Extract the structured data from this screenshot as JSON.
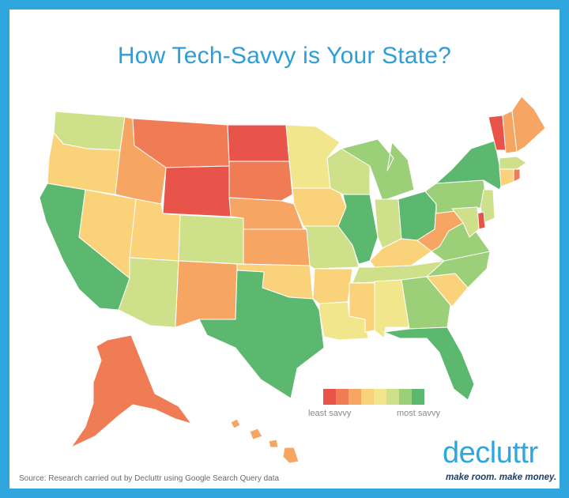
{
  "title": "How Tech-Savvy is Your State?",
  "legend": {
    "least_label": "least savvy",
    "most_label": "most savvy",
    "colors": [
      "#e8534a",
      "#f07c55",
      "#f6a562",
      "#fad27a",
      "#f2e68c",
      "#cfe08a",
      "#9bcf78",
      "#5cb86e"
    ]
  },
  "states": [
    {
      "code": "WA",
      "level": 6
    },
    {
      "code": "OR",
      "level": 4
    },
    {
      "code": "CA",
      "level": 8
    },
    {
      "code": "NV",
      "level": 4
    },
    {
      "code": "ID",
      "level": 3
    },
    {
      "code": "MT",
      "level": 2
    },
    {
      "code": "WY",
      "level": 1
    },
    {
      "code": "UT",
      "level": 4
    },
    {
      "code": "AZ",
      "level": 6
    },
    {
      "code": "CO",
      "level": 6
    },
    {
      "code": "NM",
      "level": 3
    },
    {
      "code": "ND",
      "level": 1
    },
    {
      "code": "SD",
      "level": 2
    },
    {
      "code": "NE",
      "level": 3
    },
    {
      "code": "KS",
      "level": 3
    },
    {
      "code": "OK",
      "level": 4
    },
    {
      "code": "TX",
      "level": 8
    },
    {
      "code": "MN",
      "level": 5
    },
    {
      "code": "IA",
      "level": 4
    },
    {
      "code": "MO",
      "level": 6
    },
    {
      "code": "AR",
      "level": 4
    },
    {
      "code": "LA",
      "level": 5
    },
    {
      "code": "WI",
      "level": 6
    },
    {
      "code": "IL",
      "level": 8
    },
    {
      "code": "MI",
      "level": 7
    },
    {
      "code": "IN",
      "level": 6
    },
    {
      "code": "OH",
      "level": 8
    },
    {
      "code": "KY",
      "level": 4
    },
    {
      "code": "TN",
      "level": 6
    },
    {
      "code": "MS",
      "level": 4
    },
    {
      "code": "AL",
      "level": 5
    },
    {
      "code": "GA",
      "level": 7
    },
    {
      "code": "FL",
      "level": 8
    },
    {
      "code": "SC",
      "level": 4
    },
    {
      "code": "NC",
      "level": 7
    },
    {
      "code": "VA",
      "level": 7
    },
    {
      "code": "WV",
      "level": 3
    },
    {
      "code": "PA",
      "level": 7
    },
    {
      "code": "NY",
      "level": 8
    },
    {
      "code": "VT",
      "level": 1
    },
    {
      "code": "NH",
      "level": 3
    },
    {
      "code": "ME",
      "level": 3
    },
    {
      "code": "MA",
      "level": 6
    },
    {
      "code": "CT",
      "level": 4
    },
    {
      "code": "RI",
      "level": 2
    },
    {
      "code": "NJ",
      "level": 6
    },
    {
      "code": "DE",
      "level": 1
    },
    {
      "code": "MD",
      "level": 6
    },
    {
      "code": "AK",
      "level": 2
    },
    {
      "code": "HI",
      "level": 3
    }
  ],
  "source": "Source: Research carried out by Decluttr using Google Search Query data",
  "logo": {
    "wordmark": "decluttr",
    "tagline": "make room. make money."
  }
}
